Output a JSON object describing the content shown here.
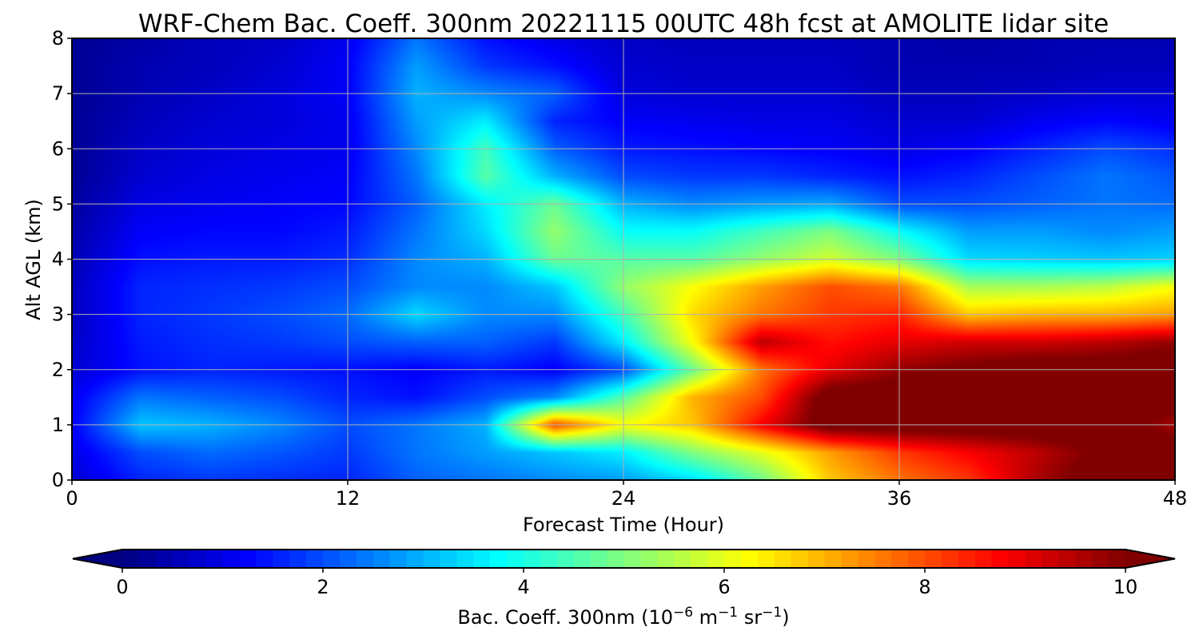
{
  "chart_data": {
    "type": "heatmap",
    "title": "WRF-Chem Bac. Coeff. 300nm  20221115 00UTC 48h fcst at AMOLITE lidar site",
    "xlabel": "Forecast Time (Hour)",
    "ylabel": "Alt AGL (km)",
    "xlim": [
      0,
      48
    ],
    "ylim": [
      0,
      8
    ],
    "x_ticks": [
      "0",
      "12",
      "24",
      "36",
      "48"
    ],
    "y_ticks": [
      "0",
      "1",
      "2",
      "3",
      "4",
      "5",
      "6",
      "7",
      "8"
    ],
    "grid": true,
    "colormap": "jet",
    "colorbar": {
      "label_prefix": "Bac. Coeff. 300nm  (10",
      "label_exp1": "−6",
      "label_mid": " m",
      "label_exp2": "−1",
      "label_mid2": " sr",
      "label_exp3": "−1",
      "label_suffix": ")",
      "range": [
        0,
        10
      ],
      "ticks": [
        "0",
        "2",
        "4",
        "6",
        "8",
        "10"
      ],
      "extend": "both",
      "colors": {
        "under": "#000080",
        "over": "#800000"
      }
    },
    "x": [
      0,
      3,
      6,
      9,
      12,
      15,
      18,
      21,
      24,
      27,
      30,
      33,
      36,
      39,
      42,
      45,
      48
    ],
    "y": [
      0,
      0.5,
      1,
      1.5,
      2,
      2.5,
      3,
      3.5,
      4,
      4.5,
      5,
      5.5,
      6,
      6.5,
      7,
      7.5,
      8
    ],
    "values": [
      [
        0.8,
        1.6,
        1.8,
        1.7,
        1.6,
        2.2,
        2.4,
        2.6,
        2.8,
        3.4,
        4.8,
        6.8,
        7.6,
        8.2,
        9.6,
        10.5,
        10.5
      ],
      [
        1.0,
        2.0,
        2.3,
        2.1,
        1.8,
        2.4,
        2.8,
        3.2,
        3.6,
        5.0,
        6.0,
        7.2,
        8.2,
        8.8,
        9.4,
        10.2,
        10.5
      ],
      [
        1.2,
        3.2,
        3.0,
        2.6,
        2.0,
        2.4,
        3.0,
        8.0,
        6.2,
        6.8,
        8.8,
        10.5,
        10.5,
        10.5,
        10.5,
        10.5,
        9.6
      ],
      [
        1.1,
        2.4,
        2.2,
        2.0,
        1.6,
        1.4,
        2.0,
        2.6,
        4.6,
        7.0,
        8.0,
        10.5,
        10.5,
        10.5,
        10.5,
        10.5,
        10.5
      ],
      [
        0.8,
        1.4,
        1.6,
        1.5,
        1.4,
        1.2,
        1.5,
        1.2,
        2.0,
        4.8,
        7.6,
        9.0,
        9.8,
        10.2,
        10.5,
        10.5,
        10.5
      ],
      [
        0.7,
        1.5,
        1.7,
        1.8,
        2.0,
        2.2,
        2.2,
        1.8,
        3.6,
        6.2,
        9.4,
        8.6,
        9.0,
        9.2,
        9.2,
        9.4,
        9.8
      ],
      [
        0.6,
        1.6,
        1.8,
        2.0,
        2.3,
        3.4,
        2.6,
        2.6,
        4.4,
        6.6,
        7.6,
        8.2,
        8.4,
        6.8,
        7.0,
        7.0,
        7.2
      ],
      [
        0.6,
        1.6,
        1.7,
        1.8,
        2.0,
        2.6,
        2.6,
        3.2,
        5.2,
        6.2,
        7.2,
        8.0,
        7.6,
        5.4,
        5.4,
        5.6,
        6.2
      ],
      [
        0.5,
        1.4,
        1.5,
        1.5,
        1.7,
        2.6,
        3.0,
        4.8,
        4.6,
        4.6,
        5.2,
        5.8,
        5.0,
        3.4,
        3.3,
        3.2,
        3.3
      ],
      [
        0.4,
        1.2,
        1.3,
        1.3,
        1.5,
        2.4,
        3.4,
        5.2,
        3.8,
        3.8,
        4.4,
        5.0,
        3.8,
        2.8,
        2.8,
        2.6,
        2.8
      ],
      [
        0.3,
        1.0,
        1.1,
        1.2,
        1.3,
        2.2,
        3.6,
        4.8,
        3.0,
        2.6,
        2.8,
        2.9,
        2.0,
        2.0,
        2.2,
        2.4,
        2.3
      ],
      [
        0.2,
        0.8,
        1.0,
        1.1,
        1.2,
        2.4,
        4.6,
        3.0,
        2.0,
        1.8,
        1.8,
        1.6,
        1.4,
        1.6,
        2.0,
        2.4,
        2.1
      ],
      [
        0.2,
        0.7,
        0.9,
        1.0,
        1.1,
        2.6,
        4.4,
        2.2,
        1.5,
        1.4,
        1.3,
        1.2,
        1.0,
        1.2,
        1.6,
        2.0,
        1.7
      ],
      [
        0.2,
        0.6,
        0.8,
        0.9,
        1.1,
        2.8,
        3.6,
        1.6,
        1.2,
        1.1,
        1.0,
        1.0,
        0.8,
        0.8,
        1.1,
        1.3,
        1.1
      ],
      [
        0.2,
        0.5,
        0.7,
        0.9,
        1.2,
        3.0,
        2.6,
        2.2,
        0.9,
        0.8,
        0.8,
        0.8,
        0.6,
        0.6,
        0.7,
        0.8,
        0.8
      ],
      [
        0.2,
        0.5,
        0.6,
        0.8,
        1.2,
        2.8,
        1.8,
        1.4,
        0.8,
        0.7,
        0.7,
        0.7,
        0.5,
        0.5,
        0.5,
        0.6,
        0.6
      ],
      [
        0.2,
        0.4,
        0.6,
        0.7,
        1.1,
        2.4,
        1.4,
        1.0,
        0.7,
        0.6,
        0.6,
        0.6,
        0.5,
        0.4,
        0.5,
        0.5,
        0.5
      ]
    ]
  }
}
